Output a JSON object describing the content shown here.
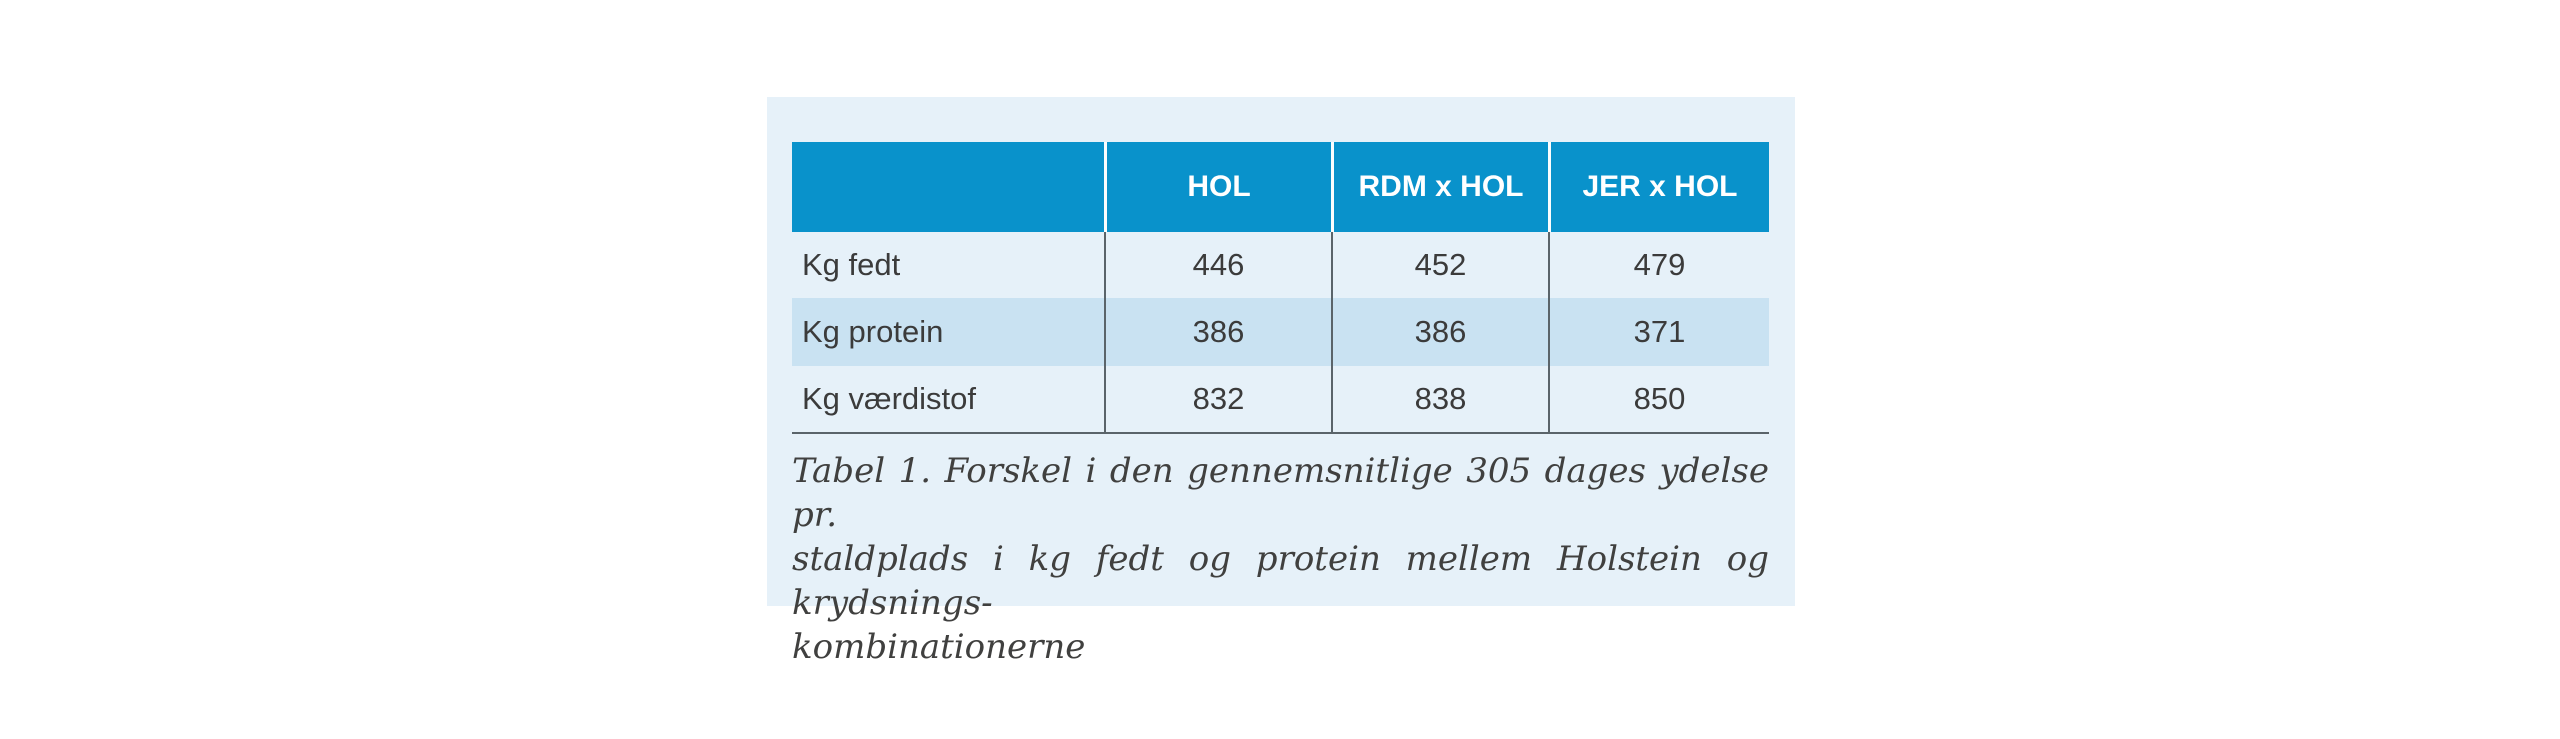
{
  "document": {
    "type": "publication-table-excerpt",
    "language": "da"
  },
  "table": {
    "column_headers": [
      "HOL",
      "RDM x HOL",
      "JER x HOL"
    ],
    "rows": [
      {
        "label": "Kg fedt",
        "values": [
          "446",
          "452",
          "479"
        ]
      },
      {
        "label": "Kg protein",
        "values": [
          "386",
          "386",
          "371"
        ]
      },
      {
        "label": "Kg værdistof",
        "values": [
          "832",
          "838",
          "850"
        ]
      }
    ]
  },
  "caption": {
    "label": "Tabel 1.",
    "lines": [
      "Tabel 1. Forskel i den gennemsnitlige 305 dages ydelse pr.",
      "staldplads i kg fedt og protein mellem Holstein og krydsnings-",
      "kombinationerne"
    ],
    "full_text": "Tabel 1. Forskel i den gennemsnitlige 305 dages ydelse pr. staldplads i kg fedt og protein mellem Holstein og krydsningskombinationerne"
  },
  "colors": {
    "header_blue": "#0992cb",
    "panel_background": "#e6f1f9",
    "alt_row_background": "#c9e2f2",
    "divider_gray": "#5a646a",
    "body_text": "#3b3b3b",
    "caption_text": "#40403f",
    "header_text": "#ffffff",
    "page_background": "#ffffff"
  }
}
